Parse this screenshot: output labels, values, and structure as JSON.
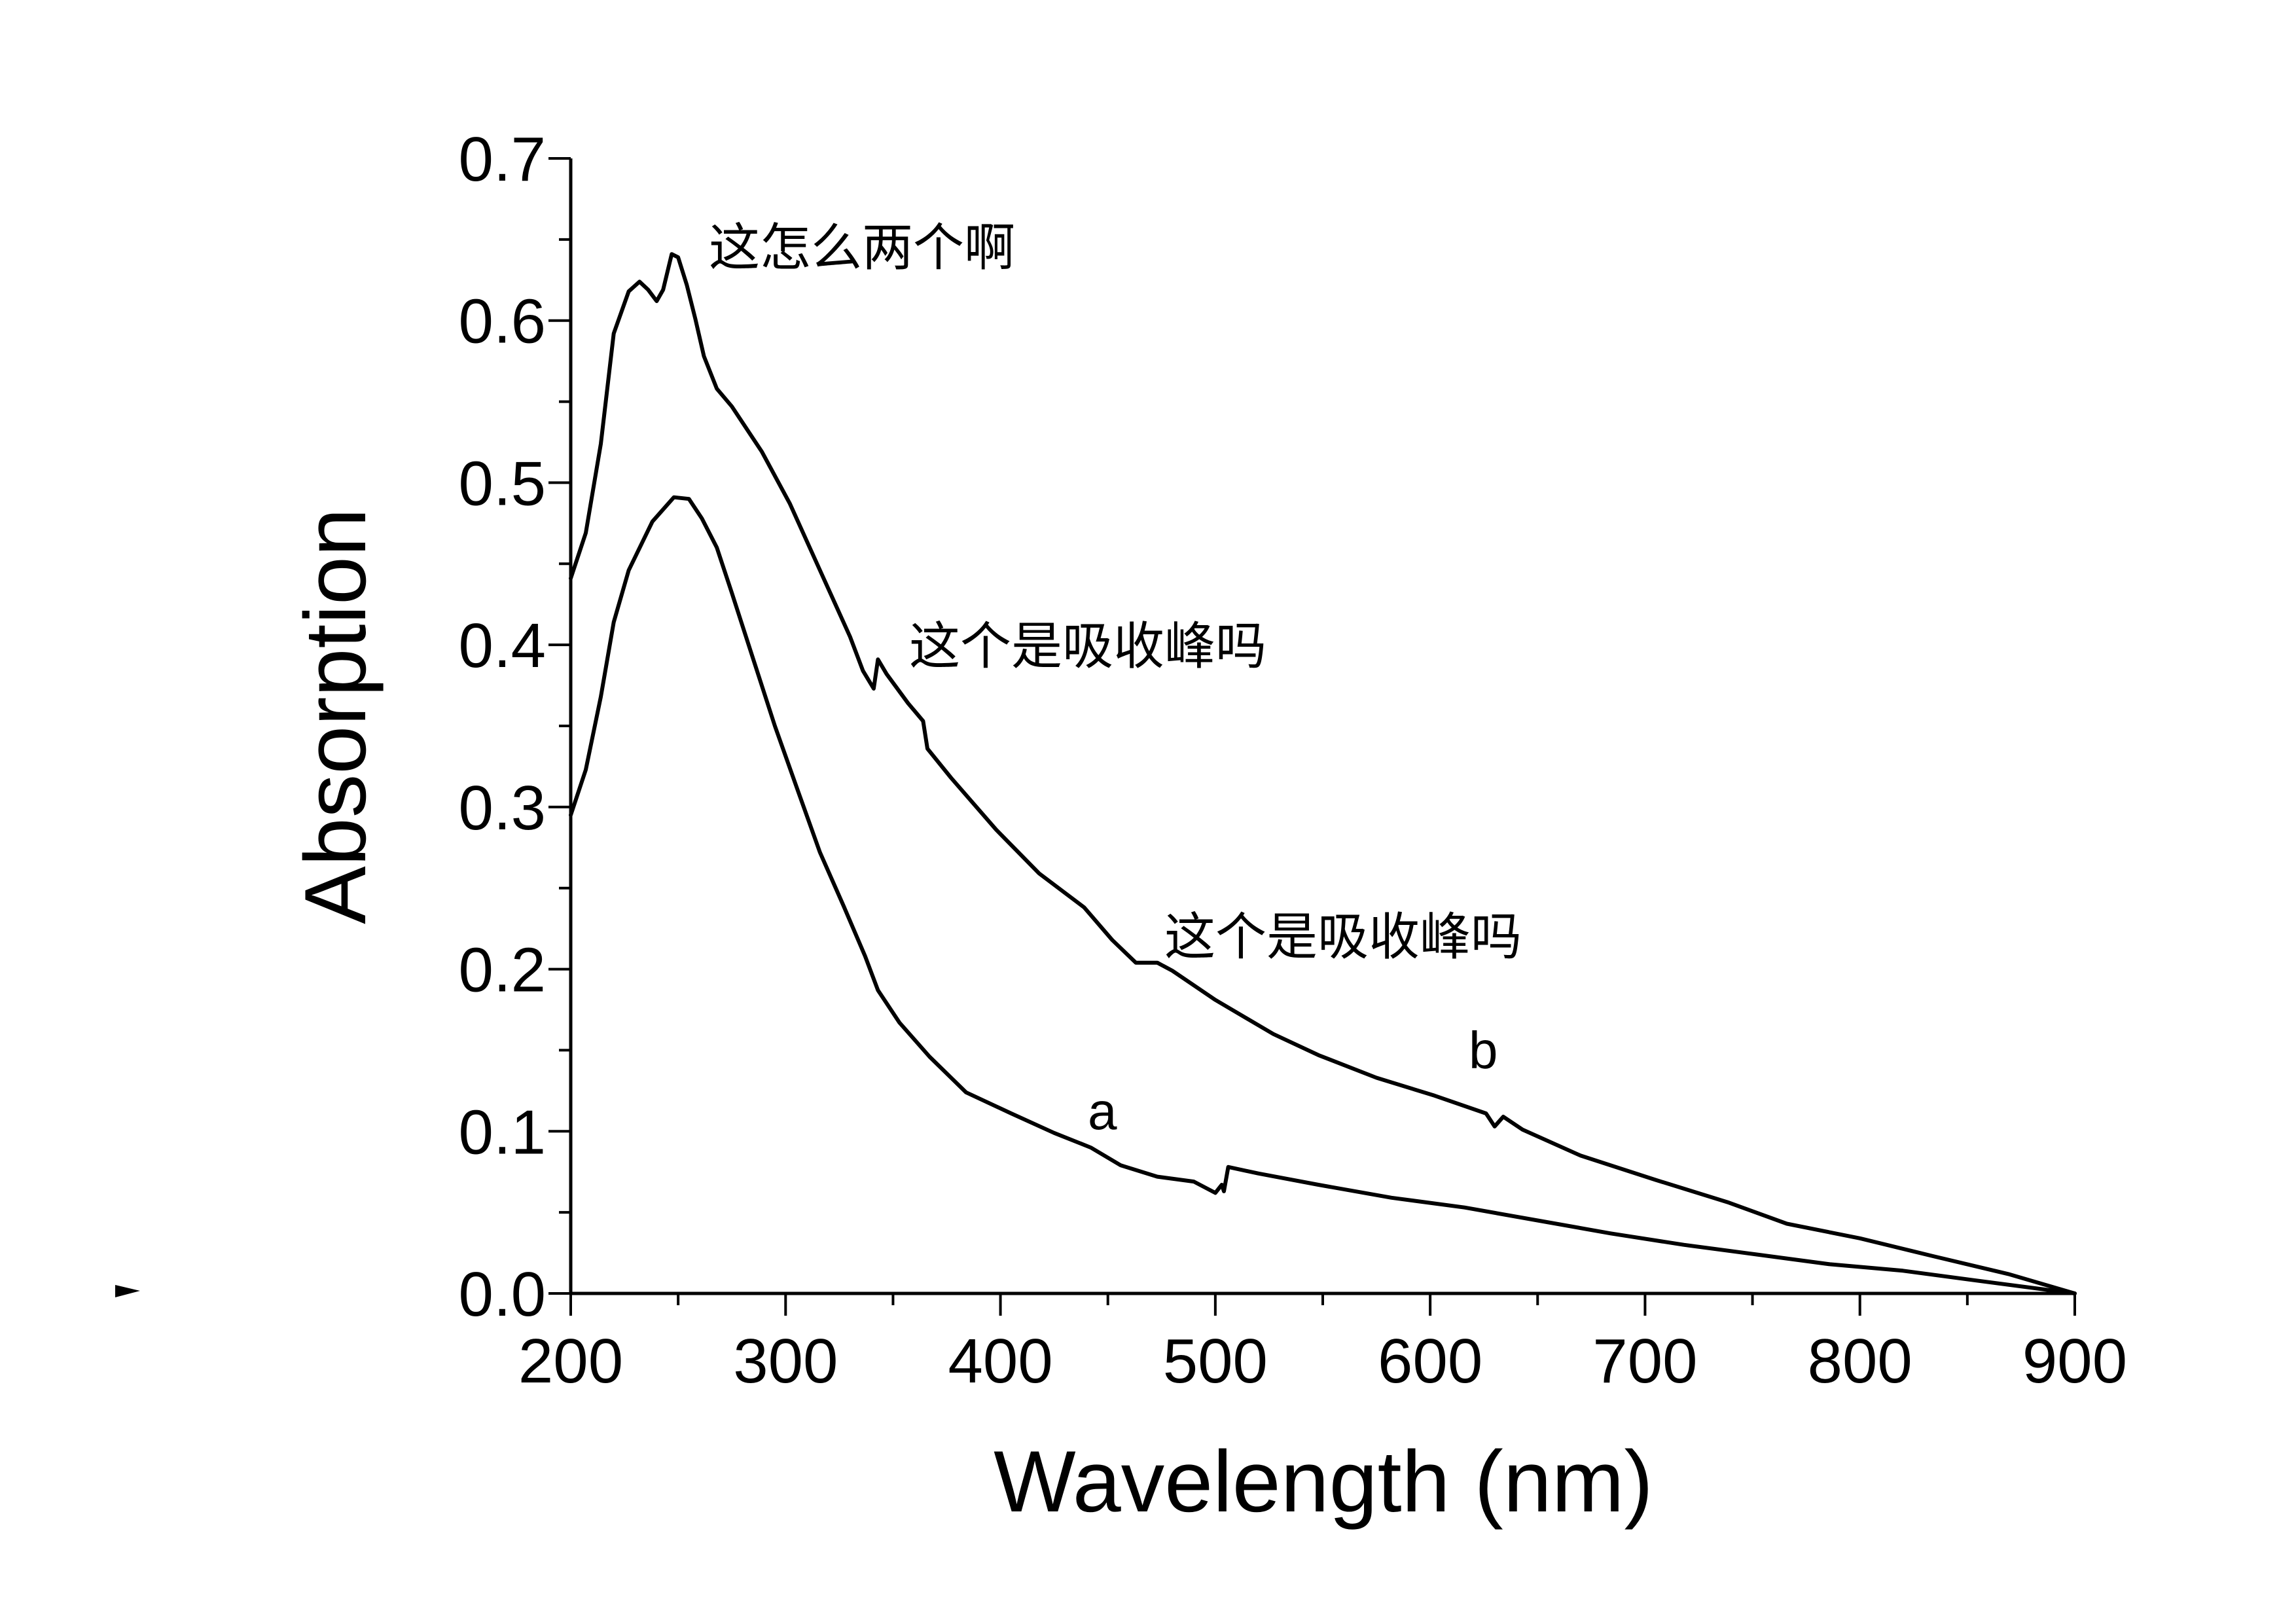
{
  "chart_data": {
    "type": "line",
    "title": "",
    "xlabel": "Wavelength (nm)",
    "ylabel": "Absorption",
    "xlim": [
      200,
      900
    ],
    "ylim": [
      0,
      0.7
    ],
    "xticks": [
      "200",
      "300",
      "400",
      "500",
      "600",
      "700",
      "800",
      "900"
    ],
    "yticks": [
      "0.0",
      "0.1",
      "0.2",
      "0.3",
      "0.4",
      "0.5",
      "0.6",
      "0.7"
    ],
    "grid": false,
    "series": [
      {
        "name": "a",
        "x": [
          200,
          207,
          214,
          220,
          227,
          238,
          248,
          255,
          261,
          268,
          275,
          285,
          295,
          306,
          316,
          327,
          337,
          343,
          353,
          367,
          384,
          405,
          425,
          442,
          456,
          473,
          490,
          500,
          503,
          504,
          506,
          520,
          548,
          582,
          616,
          650,
          684,
          718,
          752,
          786,
          820,
          854,
          900
        ],
        "y": [
          0.295,
          0.323,
          0.368,
          0.414,
          0.446,
          0.476,
          0.491,
          0.49,
          0.478,
          0.46,
          0.432,
          0.391,
          0.35,
          0.309,
          0.272,
          0.239,
          0.208,
          0.187,
          0.167,
          0.146,
          0.124,
          0.111,
          0.099,
          0.09,
          0.079,
          0.072,
          0.069,
          0.062,
          0.067,
          0.063,
          0.078,
          0.074,
          0.067,
          0.059,
          0.053,
          0.045,
          0.037,
          0.03,
          0.024,
          0.018,
          0.014,
          0.008,
          0.0
        ]
      },
      {
        "name": "b",
        "x": [
          200,
          207,
          214,
          220,
          227,
          232,
          236,
          240,
          243,
          247,
          250,
          254,
          258,
          262,
          268,
          275,
          289,
          302,
          316,
          330,
          336,
          341,
          343,
          347,
          357,
          364,
          366,
          377,
          398,
          418,
          439,
          452,
          463,
          473,
          480,
          500,
          527,
          548,
          575,
          602,
          626,
          630,
          634,
          643,
          670,
          705,
          739,
          766,
          800,
          834,
          869,
          900
        ],
        "y": [
          0.441,
          0.469,
          0.524,
          0.592,
          0.618,
          0.624,
          0.619,
          0.612,
          0.619,
          0.641,
          0.639,
          0.622,
          0.601,
          0.578,
          0.558,
          0.547,
          0.519,
          0.487,
          0.446,
          0.405,
          0.384,
          0.373,
          0.391,
          0.382,
          0.364,
          0.353,
          0.336,
          0.318,
          0.286,
          0.259,
          0.238,
          0.218,
          0.204,
          0.204,
          0.199,
          0.181,
          0.16,
          0.147,
          0.133,
          0.122,
          0.111,
          0.103,
          0.109,
          0.101,
          0.085,
          0.07,
          0.056,
          0.043,
          0.034,
          0.023,
          0.012,
          0.0
        ]
      }
    ],
    "annotations": [
      {
        "text": "这怎么两个啊"
      },
      {
        "text": "这个是吸收峰吗"
      },
      {
        "text": "这个是吸收峰吗"
      }
    ]
  },
  "colors": {
    "line": "#000000",
    "background": "#ffffff"
  }
}
